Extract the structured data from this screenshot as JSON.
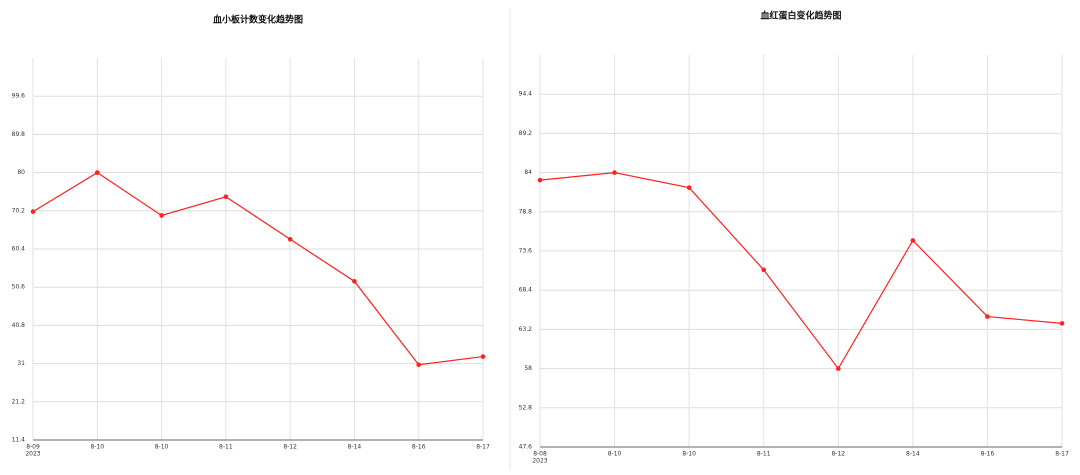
{
  "chart_data": [
    {
      "type": "line",
      "title": "血小板计数变化趋势图",
      "year_label": "2023",
      "categories": [
        "8-09",
        "8-10",
        "8-10",
        "8-11",
        "8-12",
        "8-14",
        "8-16",
        "8-17"
      ],
      "series": [
        {
          "color": "#ff2020",
          "values": [
            70,
            80,
            69,
            73.8,
            62.9,
            52.1,
            30.7,
            32.8
          ]
        }
      ],
      "ylim": [
        11.4,
        109.4
      ],
      "yticks": [
        11.4,
        21.2,
        31,
        40.8,
        50.6,
        60.4,
        70.2,
        80,
        89.8,
        99.6
      ],
      "grid": true
    },
    {
      "type": "line",
      "title": "血红蛋白变化趋势图",
      "year_label": "2023",
      "categories": [
        "8-08",
        "8-10",
        "8-10",
        "8-11",
        "8-12",
        "8-14",
        "8-16",
        "8-17"
      ],
      "series": [
        {
          "color": "#ff2020",
          "values": [
            83,
            84,
            82,
            71.1,
            58,
            75,
            64.9,
            64
          ]
        }
      ],
      "ylim": [
        47.6,
        99.6
      ],
      "yticks": [
        47.6,
        52.8,
        58,
        63.2,
        68.4,
        73.6,
        78.8,
        84,
        89.2,
        94.4
      ],
      "grid": true
    }
  ]
}
